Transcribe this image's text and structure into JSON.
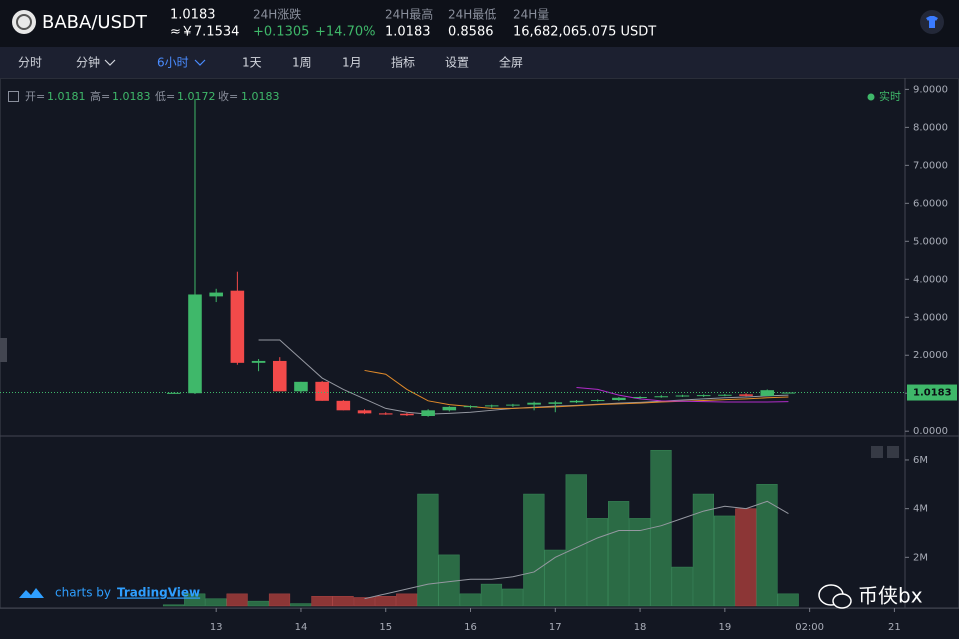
{
  "header": {
    "symbol": "BABA/USDT",
    "last": "1.0183",
    "cny": "≈￥7.1534",
    "change_label": "24H涨跌",
    "change": "+0.1305",
    "change_pct": "+14.70%",
    "high_label": "24H最高",
    "high": "1.0183",
    "low_label": "24H最低",
    "low": "0.8586",
    "volume_label": "24H量",
    "volume": "16,682,065.075 USDT"
  },
  "toolbar": {
    "items": [
      "分时",
      "分钟",
      "6小时",
      "1天",
      "1周",
      "1月",
      "指标",
      "设置",
      "全屏"
    ]
  },
  "legend": {
    "open": "开=",
    "high": "高=",
    "low": "低=",
    "close": "收=",
    "realtime": "实时"
  },
  "footer": {
    "charts_by": "charts by",
    "brand": "TradingView",
    "watermark": "币侠bx"
  },
  "chart_data": {
    "type": "candlestick",
    "x": [
      0,
      1,
      2,
      3,
      4,
      5,
      6,
      7,
      8,
      9,
      10,
      11,
      12,
      13,
      14,
      15,
      16,
      17,
      18,
      19,
      20,
      21,
      22,
      23,
      24,
      25,
      26,
      27,
      28,
      29
    ],
    "open": [
      1.0,
      1.0,
      3.55,
      3.7,
      1.8,
      1.85,
      1.05,
      1.3,
      0.8,
      0.55,
      0.47,
      0.46,
      0.4,
      0.55,
      0.64,
      0.66,
      0.68,
      0.7,
      0.72,
      0.76,
      0.8,
      0.82,
      0.88,
      0.9,
      0.92,
      0.94,
      0.95,
      0.97,
      0.93,
      1.0181
    ],
    "high": [
      1.02,
      8.75,
      3.75,
      4.2,
      1.9,
      1.95,
      1.3,
      1.32,
      0.82,
      0.58,
      0.5,
      0.48,
      0.58,
      0.66,
      0.68,
      0.7,
      0.72,
      0.78,
      0.8,
      0.82,
      0.84,
      0.9,
      0.92,
      0.95,
      0.96,
      0.97,
      0.98,
      1.0,
      1.1,
      1.0183
    ],
    "low": [
      0.99,
      0.98,
      3.4,
      1.75,
      1.58,
      1.05,
      1.0,
      0.8,
      0.55,
      0.45,
      0.43,
      0.4,
      0.38,
      0.52,
      0.6,
      0.62,
      0.64,
      0.55,
      0.5,
      0.74,
      0.78,
      0.8,
      0.85,
      0.88,
      0.9,
      0.9,
      0.92,
      0.92,
      0.92,
      1.0172
    ],
    "close": [
      1.01,
      3.6,
      3.65,
      1.8,
      1.85,
      1.05,
      1.3,
      0.8,
      0.55,
      0.47,
      0.44,
      0.42,
      0.55,
      0.64,
      0.66,
      0.68,
      0.7,
      0.75,
      0.76,
      0.8,
      0.82,
      0.88,
      0.9,
      0.92,
      0.94,
      0.95,
      0.96,
      0.93,
      1.08,
      1.0183
    ],
    "volume": [
      50000,
      500000,
      300000,
      500000,
      200000,
      500000,
      100000,
      400000,
      400000,
      350000,
      400000,
      500000,
      4600000,
      2100000,
      500000,
      900000,
      700000,
      4600000,
      2300000,
      5400000,
      3600000,
      4300000,
      3600000,
      6400000,
      1600000,
      4600000,
      3700000,
      4000000,
      5000000,
      500000
    ],
    "ma": [
      {
        "color": "#9598a1",
        "values": [
          null,
          null,
          null,
          null,
          2.4,
          2.4,
          1.9,
          1.4,
          1.1,
          0.85,
          0.6,
          0.5,
          0.45,
          0.47,
          0.5,
          0.55,
          0.6,
          0.63,
          0.66,
          0.68,
          0.71,
          0.74,
          0.76,
          0.79,
          0.82,
          0.85,
          0.88,
          0.9,
          0.93,
          0.95
        ]
      },
      {
        "color": "#e08a2a",
        "values": [
          null,
          null,
          null,
          null,
          null,
          null,
          null,
          null,
          null,
          1.6,
          1.5,
          1.1,
          0.8,
          0.7,
          0.65,
          0.6,
          0.6,
          0.62,
          0.64,
          0.67,
          0.7,
          0.72,
          0.74,
          0.77,
          0.79,
          0.81,
          0.83,
          0.85,
          0.88,
          0.9
        ]
      },
      {
        "color": "#b02cc9",
        "values": [
          null,
          null,
          null,
          null,
          null,
          null,
          null,
          null,
          null,
          null,
          null,
          null,
          null,
          null,
          null,
          null,
          null,
          null,
          null,
          1.15,
          1.1,
          0.95,
          0.85,
          0.8,
          0.79,
          0.78,
          0.77,
          0.77,
          0.77,
          0.78
        ]
      }
    ],
    "volume_ma": {
      "color": "#9598a1",
      "values": [
        null,
        null,
        null,
        null,
        null,
        null,
        null,
        null,
        null,
        300000,
        500000,
        700000,
        900000,
        1000000,
        1100000,
        1100000,
        1200000,
        1400000,
        2000000,
        2400000,
        2800000,
        3100000,
        3100000,
        3300000,
        3600000,
        3900000,
        4100000,
        4000000,
        4300000,
        3800000
      ]
    },
    "up_color": "#3fb86a",
    "down_color": "#f24a4a",
    "volume_up_color": "#2b6b45",
    "volume_down_color": "#8c3636",
    "xlim": [
      -8.2,
      34.5
    ],
    "xticks": [
      {
        "value": 2,
        "label": "13"
      },
      {
        "value": 6,
        "label": "14"
      },
      {
        "value": 10,
        "label": "15"
      },
      {
        "value": 14,
        "label": "16"
      },
      {
        "value": 18,
        "label": "17"
      },
      {
        "value": 22,
        "label": "18"
      },
      {
        "value": 26,
        "label": "19"
      },
      {
        "value": 30,
        "label": "02:00"
      },
      {
        "value": 34,
        "label": "21"
      }
    ],
    "ylim": [
      -0.1,
      9.3
    ],
    "yticks": [
      {
        "value": 0,
        "label": "0.0000"
      },
      {
        "value": 1,
        "label": "1.0000"
      },
      {
        "value": 2,
        "label": "2.0000"
      },
      {
        "value": 3,
        "label": "3.0000"
      },
      {
        "value": 4,
        "label": "4.0000"
      },
      {
        "value": 5,
        "label": "5.0000"
      },
      {
        "value": 6,
        "label": "6.0000"
      },
      {
        "value": 7,
        "label": "7.0000"
      },
      {
        "value": 8,
        "label": "8.0000"
      },
      {
        "value": 9,
        "label": "9.0000"
      }
    ],
    "y2lim": [
      0,
      6800000
    ],
    "y2ticks": [
      {
        "value": 2000000,
        "label": "2M"
      },
      {
        "value": 4000000,
        "label": "4M"
      },
      {
        "value": 6000000,
        "label": "6M"
      }
    ]
  }
}
